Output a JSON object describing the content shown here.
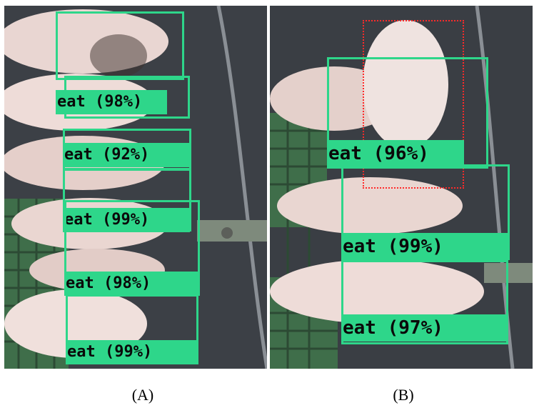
{
  "panels": [
    {
      "caption": "(A)",
      "detections": [
        {
          "label": "eat (98%)"
        },
        {
          "label": "eat (92%)"
        },
        {
          "label": "eat (99%)"
        },
        {
          "label": "eat (98%)"
        },
        {
          "label": "eat (99%)"
        }
      ]
    },
    {
      "caption": "(B)",
      "detections": [
        {
          "label": "eat (96%)"
        },
        {
          "label": "eat (99%)"
        },
        {
          "label": "eat (97%)"
        }
      ]
    }
  ],
  "colors": {
    "box": "#2ed68a",
    "roi": "#ff2a2a"
  }
}
